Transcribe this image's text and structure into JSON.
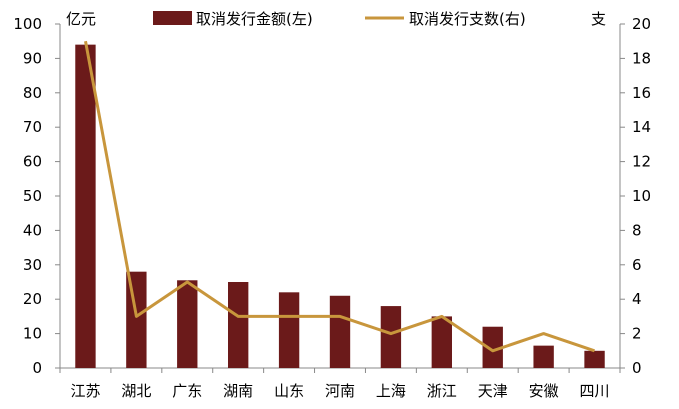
{
  "chart_data": {
    "type": "bar",
    "categories": [
      "江苏",
      "湖北",
      "广东",
      "湖南",
      "山东",
      "河南",
      "上海",
      "浙江",
      "天津",
      "安徽",
      "四川"
    ],
    "series": [
      {
        "name": "取消发行金额(左)",
        "type": "bar",
        "axis": "left",
        "color": "#6b1a1a",
        "values": [
          94,
          28,
          25.5,
          25,
          22,
          21,
          18,
          15,
          12,
          6.5,
          5
        ]
      },
      {
        "name": "取消发行支数(右)",
        "type": "line",
        "axis": "right",
        "color": "#c8963c",
        "values": [
          19,
          3,
          5,
          3,
          3,
          3,
          2,
          3,
          1,
          2,
          1
        ]
      }
    ],
    "y_left": {
      "unit": "亿元",
      "range": [
        0,
        100
      ],
      "ticks": [
        0,
        10,
        20,
        30,
        40,
        50,
        60,
        70,
        80,
        90,
        100
      ]
    },
    "y_right": {
      "unit": "支",
      "range": [
        0,
        20
      ],
      "ticks": [
        0,
        2,
        4,
        6,
        8,
        10,
        12,
        14,
        16,
        18,
        20
      ]
    },
    "grid": false,
    "legend_position": "top"
  }
}
